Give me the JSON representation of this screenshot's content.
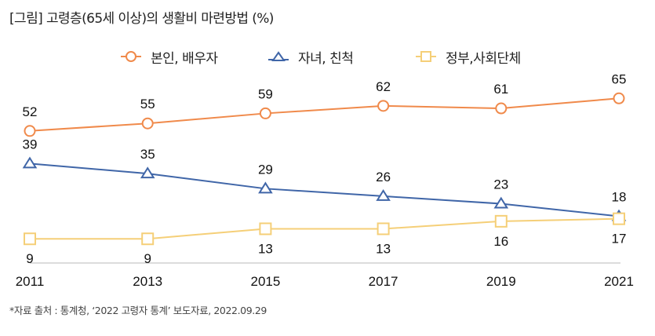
{
  "title": "[그림] 고령층(65세 이상)의 생활비 마련방법 (%)",
  "source": "*자료 출처 : 통계청, ‘2022 고령자 통계’ 보도자료, 2022.09.29",
  "chart_data": {
    "type": "line",
    "title": "[그림] 고령층(65세 이상)의 생활비 마련방법 (%)",
    "xlabel": "",
    "ylabel": "%",
    "x": [
      "2011",
      "2013",
      "2015",
      "2017",
      "2019",
      "2021"
    ],
    "ylim": [
      0,
      70
    ],
    "grid": false,
    "legend_position": "top-center",
    "series": [
      {
        "name": "본인, 배우자",
        "marker": "circle",
        "color": "#F08A4B",
        "values": [
          52,
          55,
          59,
          62,
          61,
          65
        ],
        "label_position": "above"
      },
      {
        "name": "자녀, 친척",
        "marker": "triangle",
        "color": "#4066A8",
        "values": [
          39,
          35,
          29,
          26,
          23,
          18
        ],
        "label_position": "above"
      },
      {
        "name": "정부,사회단체",
        "marker": "square",
        "color": "#F5CF78",
        "values": [
          9,
          9,
          13,
          13,
          16,
          17
        ],
        "label_position": "below"
      }
    ]
  }
}
